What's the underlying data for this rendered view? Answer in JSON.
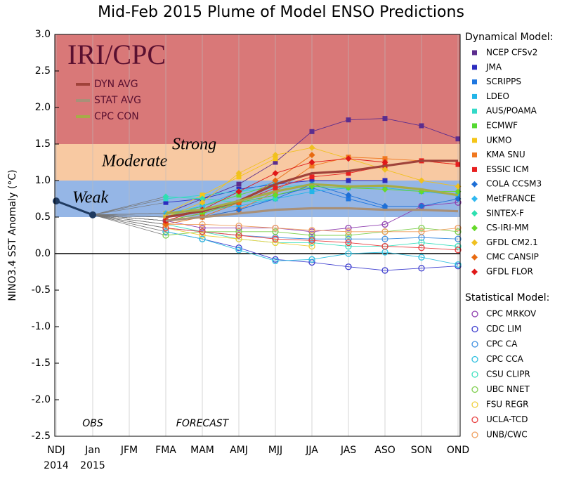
{
  "chart_data": {
    "type": "plume",
    "title": "Mid-Feb 2015 Plume of Model ENSO Predictions",
    "y_label": "NINO3.4 SST Anomaly (°C)",
    "categories": [
      "NDJ",
      "Jan",
      "JFM",
      "FMA",
      "MAM",
      "AMJ",
      "MJJ",
      "JJA",
      "JAS",
      "ASO",
      "SON",
      "OND"
    ],
    "x_sublabels": [
      "2014",
      "2015",
      null,
      null,
      null,
      null,
      null,
      null,
      null,
      null,
      null,
      null
    ],
    "ylim": [
      -2.5,
      3.0
    ],
    "yticks": [
      {
        "value": 3.0,
        "label": "3.0"
      },
      2.5,
      {
        "value": 2.0,
        "label": "2.0"
      },
      1.5,
      {
        "value": 1.0,
        "label": "1.0"
      },
      0.5,
      {
        "value": 0.0,
        "label": "0.0"
      },
      -0.5,
      {
        "value": -1.0,
        "label": "-1.0"
      },
      -1.5,
      {
        "value": -2.0,
        "label": "-2.0"
      },
      -2.5
    ],
    "grid": "vertical",
    "bands": [
      {
        "name": "Strong",
        "from": 1.5,
        "to": 3.0,
        "color": "#d97878"
      },
      {
        "name": "Moderate",
        "from": 1.0,
        "to": 1.5,
        "color": "#f8c9a2"
      },
      {
        "name": "Weak",
        "from": 0.5,
        "to": 1.0,
        "color": "#95b6e6"
      }
    ],
    "logo": "IRI/CPC",
    "annotations": [
      "OBS",
      "FORECAST"
    ],
    "observed": {
      "color": "#1f3a60",
      "values": [
        0.72,
        0.53,
        null,
        null,
        null,
        null,
        null,
        null,
        null,
        null,
        null,
        null
      ]
    },
    "averages": [
      {
        "name": "DYN AVG",
        "color": "#a0423a",
        "values": [
          null,
          null,
          null,
          0.5,
          0.58,
          0.72,
          0.95,
          1.1,
          1.13,
          1.2,
          1.27,
          1.27
        ]
      },
      {
        "name": "STAT AVG",
        "color": "#a89078",
        "values": [
          null,
          null,
          null,
          0.45,
          0.5,
          0.55,
          0.6,
          0.62,
          0.62,
          0.6,
          0.6,
          0.58
        ]
      },
      {
        "name": "CPC CON",
        "color": "#a6ac48",
        "values": [
          null,
          null,
          null,
          0.55,
          0.6,
          0.72,
          0.85,
          0.95,
          0.92,
          0.93,
          0.88,
          0.8
        ]
      }
    ],
    "dynamical_title": "Dynamical Model:",
    "dynamical": [
      {
        "name": "NCEP CFSv2",
        "color": "#5b2d8e",
        "marker": "square",
        "values": [
          null,
          null,
          null,
          0.55,
          0.75,
          0.95,
          1.25,
          1.67,
          1.83,
          1.85,
          1.75,
          1.57
        ]
      },
      {
        "name": "JMA",
        "color": "#2c2cbf",
        "marker": "square",
        "values": [
          null,
          null,
          null,
          0.7,
          0.75,
          0.88,
          0.95,
          1.0,
          1.0,
          1.0,
          null,
          null
        ]
      },
      {
        "name": "SCRIPPS",
        "color": "#1f77e0",
        "marker": "square",
        "values": [
          null,
          null,
          null,
          0.5,
          0.6,
          0.7,
          0.8,
          0.9,
          0.75,
          0.62,
          null,
          null
        ]
      },
      {
        "name": "LDEO",
        "color": "#22b5e8",
        "marker": "square",
        "values": [
          null,
          null,
          null,
          0.55,
          0.6,
          0.65,
          0.75,
          0.85,
          0.9,
          0.9,
          0.85,
          0.8
        ]
      },
      {
        "name": "AUS/POAMA",
        "color": "#33d9c8",
        "marker": "square",
        "values": [
          null,
          null,
          null,
          0.75,
          0.8,
          0.85,
          0.9,
          0.95,
          null,
          null,
          null,
          null
        ]
      },
      {
        "name": "ECMWF",
        "color": "#55d933",
        "marker": "square",
        "values": [
          null,
          null,
          null,
          0.5,
          0.65,
          0.8,
          0.95,
          null,
          null,
          null,
          null,
          null
        ]
      },
      {
        "name": "UKMO",
        "color": "#f5c518",
        "marker": "square",
        "values": [
          null,
          null,
          null,
          0.55,
          0.8,
          1.05,
          1.3,
          null,
          null,
          null,
          null,
          null
        ]
      },
      {
        "name": "KMA SNU",
        "color": "#f07820",
        "marker": "square",
        "values": [
          null,
          null,
          null,
          0.45,
          0.5,
          0.6,
          0.85,
          1.2,
          1.32,
          1.3,
          1.27,
          1.22
        ]
      },
      {
        "name": "ESSIC ICM",
        "color": "#e82020",
        "marker": "square",
        "values": [
          null,
          null,
          null,
          0.45,
          0.55,
          0.7,
          0.9,
          1.05,
          1.1,
          1.2,
          1.27,
          1.22
        ]
      },
      {
        "name": "COLA CCSM3",
        "color": "#1e6fd6",
        "marker": "diamond",
        "values": [
          null,
          null,
          null,
          0.45,
          0.5,
          0.6,
          0.75,
          0.95,
          0.8,
          0.65,
          0.65,
          0.75
        ]
      },
      {
        "name": "MetFRANCE",
        "color": "#30b8f0",
        "marker": "diamond",
        "values": [
          null,
          null,
          null,
          0.55,
          0.65,
          0.85,
          0.98,
          null,
          null,
          null,
          null,
          null
        ]
      },
      {
        "name": "SINTEX-F",
        "color": "#2ee0b0",
        "marker": "diamond",
        "values": [
          null,
          null,
          null,
          0.78,
          0.75,
          0.7,
          0.75,
          null,
          null,
          null,
          null,
          null
        ]
      },
      {
        "name": "CS-IRI-MM",
        "color": "#66d92a",
        "marker": "diamond",
        "values": [
          null,
          null,
          null,
          0.45,
          0.55,
          0.7,
          0.8,
          0.92,
          0.9,
          0.88,
          0.85,
          0.85
        ]
      },
      {
        "name": "GFDL CM2.1",
        "color": "#f0c020",
        "marker": "diamond",
        "values": [
          null,
          null,
          null,
          0.5,
          0.7,
          1.1,
          1.35,
          1.45,
          1.3,
          1.15,
          1.0,
          0.92
        ]
      },
      {
        "name": "CMC CANSIP",
        "color": "#e86a10",
        "marker": "diamond",
        "values": [
          null,
          null,
          null,
          0.4,
          0.5,
          0.7,
          1.0,
          1.35,
          null,
          null,
          null,
          null
        ]
      },
      {
        "name": "GFDL FLOR",
        "color": "#e01818",
        "marker": "diamond",
        "values": [
          null,
          null,
          null,
          0.45,
          0.6,
          0.85,
          1.1,
          1.25,
          1.3,
          1.25,
          null,
          null
        ]
      }
    ],
    "statistical_title": "Statistical Model:",
    "statistical": [
      {
        "name": "CPC MRKOV",
        "color": "#9040b0",
        "marker": "circle",
        "values": [
          null,
          null,
          null,
          0.45,
          0.35,
          0.35,
          0.35,
          0.3,
          0.35,
          0.4,
          0.65,
          0.7
        ]
      },
      {
        "name": "CDC LIM",
        "color": "#4040d0",
        "marker": "circle",
        "values": [
          null,
          null,
          null,
          0.3,
          0.2,
          0.08,
          -0.08,
          -0.12,
          -0.18,
          -0.23,
          -0.2,
          -0.17
        ]
      },
      {
        "name": "CPC CA",
        "color": "#4090e0",
        "marker": "circle",
        "values": [
          null,
          null,
          null,
          0.35,
          0.3,
          0.25,
          0.22,
          0.2,
          0.2,
          0.2,
          0.22,
          0.2
        ]
      },
      {
        "name": "CPC CCA",
        "color": "#30c0e0",
        "marker": "circle",
        "values": [
          null,
          null,
          null,
          0.3,
          0.2,
          0.05,
          -0.1,
          -0.08,
          0.0,
          0.02,
          -0.05,
          -0.15
        ]
      },
      {
        "name": "CSU CLIPR",
        "color": "#40e0c0",
        "marker": "circle",
        "values": [
          null,
          null,
          null,
          0.4,
          0.3,
          0.2,
          0.15,
          0.15,
          0.1,
          0.1,
          0.15,
          0.1
        ]
      },
      {
        "name": "UBC NNET",
        "color": "#80d050",
        "marker": "circle",
        "values": [
          null,
          null,
          null,
          0.25,
          0.3,
          0.3,
          0.3,
          0.25,
          0.25,
          0.3,
          0.35,
          0.3
        ]
      },
      {
        "name": "FSU REGR",
        "color": "#f0d040",
        "marker": "circle",
        "values": [
          null,
          null,
          null,
          0.35,
          0.25,
          0.2,
          0.15,
          0.1,
          null,
          null,
          null,
          null
        ]
      },
      {
        "name": "UCLA-TCD",
        "color": "#e84040",
        "marker": "circle",
        "values": [
          null,
          null,
          null,
          0.35,
          0.3,
          0.25,
          0.2,
          0.18,
          0.15,
          0.1,
          0.08,
          0.05
        ]
      },
      {
        "name": "UNB/CWC",
        "color": "#f0a060",
        "marker": "circle",
        "values": [
          null,
          null,
          null,
          0.4,
          0.4,
          0.38,
          0.35,
          0.32,
          0.3,
          0.3,
          0.3,
          0.35
        ]
      }
    ]
  }
}
